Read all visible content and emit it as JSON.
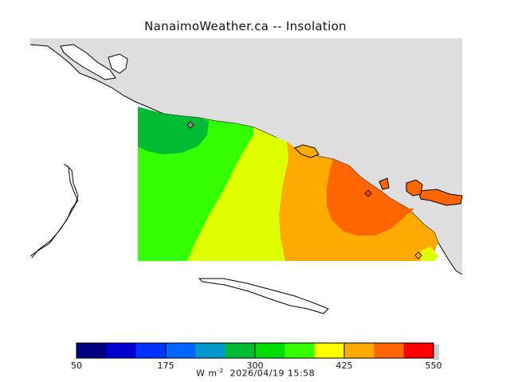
{
  "title": "NanaimoWeather.ca -- Insolation",
  "colorbar": {
    "ticks": [
      "50",
      "175",
      "300",
      "425",
      "550"
    ],
    "min": 50,
    "max": 550,
    "colors": [
      "#000080",
      "#0000d0",
      "#0033ff",
      "#0066ff",
      "#0099cc",
      "#00bb33",
      "#00dd00",
      "#33ff00",
      "#ffff00",
      "#ffaa00",
      "#ff6600",
      "#ff0000"
    ],
    "units": "W m",
    "units_exponent": "-2",
    "timestamp": "2026/04/19 15:58"
  },
  "map": {
    "land_color": "#dedede",
    "water_color": "#ffffff",
    "coast_color": "#000000",
    "field_levels": [
      {
        "range": [
          275,
          300
        ],
        "color": "#00bb33"
      },
      {
        "range": [
          300,
          325
        ],
        "color": "#33ff00"
      },
      {
        "range": [
          350,
          375
        ],
        "color": "#ddff00"
      },
      {
        "range": [
          375,
          425
        ],
        "color": "#ffaa00"
      },
      {
        "range": [
          425,
          475
        ],
        "color": "#ff6600"
      }
    ],
    "stations": [
      "station-1",
      "station-2",
      "station-3"
    ]
  }
}
